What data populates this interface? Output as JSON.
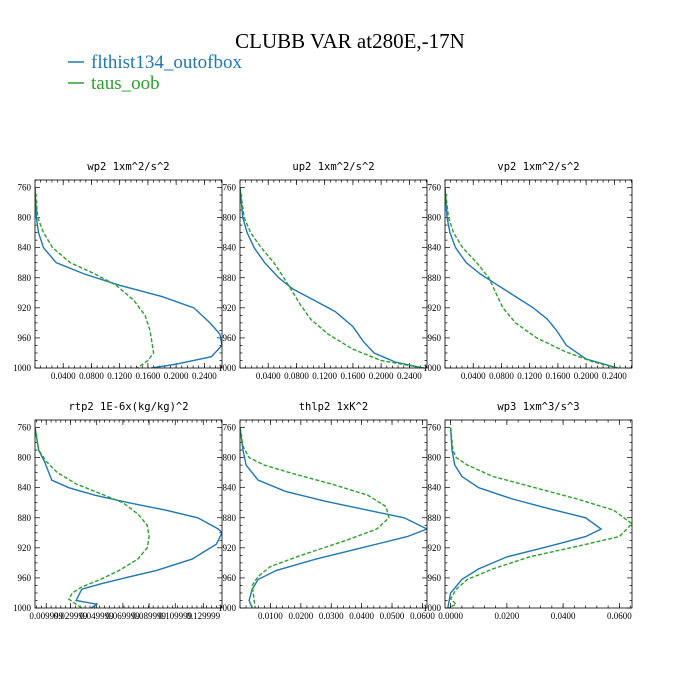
{
  "title": "CLUBB VAR at280E,-17N",
  "legend": [
    {
      "label": "flthist134_outofbox",
      "color": "#1f77b4",
      "dash": "solid"
    },
    {
      "label": "taus_oob",
      "color": "#2ca02c",
      "dash": "dashed"
    }
  ],
  "chart_data": [
    {
      "type": "line",
      "title": "wp2  1xm^2/s^2",
      "ylim": [
        1000,
        750
      ],
      "yticks": [
        760,
        800,
        840,
        880,
        920,
        960,
        1000
      ],
      "xlim": [
        0,
        0.265
      ],
      "xticks": [
        0.04,
        0.08,
        0.12,
        0.16,
        0.2,
        0.24
      ],
      "xticklabels": [
        "0.0400",
        "0.0800",
        "0.1200",
        "0.1600",
        "0.2000",
        "0.2400"
      ],
      "series": [
        {
          "x": [
            0.0,
            0.002,
            0.005,
            0.012,
            0.03,
            0.07,
            0.12,
            0.18,
            0.225,
            0.248,
            0.262,
            0.265,
            0.25,
            0.2,
            0.165
          ],
          "y": [
            760,
            800,
            820,
            840,
            860,
            875,
            890,
            905,
            920,
            940,
            955,
            970,
            985,
            995,
            1000
          ]
        },
        {
          "x": [
            0.0,
            0.004,
            0.012,
            0.025,
            0.05,
            0.085,
            0.115,
            0.14,
            0.156,
            0.163,
            0.168,
            0.16,
            0.145
          ],
          "y": [
            760,
            800,
            820,
            840,
            860,
            875,
            890,
            910,
            930,
            950,
            980,
            990,
            1000
          ]
        }
      ]
    },
    {
      "type": "line",
      "title": "up2  1xm^2/s^2",
      "ylim": [
        1000,
        750
      ],
      "yticks": [
        760,
        800,
        840,
        880,
        920,
        960,
        1000
      ],
      "xlim": [
        0,
        0.265
      ],
      "xticks": [
        0.04,
        0.08,
        0.12,
        0.16,
        0.2,
        0.24
      ],
      "xticklabels": [
        "0.0400",
        "0.0800",
        "0.1200",
        "0.1600",
        "0.2000",
        "0.2400"
      ],
      "series": [
        {
          "x": [
            0.0,
            0.004,
            0.01,
            0.02,
            0.035,
            0.055,
            0.075,
            0.105,
            0.135,
            0.16,
            0.175,
            0.19,
            0.22,
            0.26
          ],
          "y": [
            760,
            800,
            820,
            840,
            860,
            880,
            895,
            910,
            925,
            945,
            965,
            980,
            992,
            1000
          ]
        },
        {
          "x": [
            0.0,
            0.006,
            0.015,
            0.03,
            0.048,
            0.062,
            0.072,
            0.085,
            0.1,
            0.125,
            0.16,
            0.2,
            0.26
          ],
          "y": [
            760,
            800,
            820,
            840,
            860,
            880,
            895,
            915,
            935,
            955,
            975,
            990,
            1000
          ]
        }
      ]
    },
    {
      "type": "line",
      "title": "vp2  1xm^2/s^2",
      "ylim": [
        1000,
        750
      ],
      "yticks": [
        760,
        800,
        840,
        880,
        920,
        960,
        1000
      ],
      "xlim": [
        0,
        0.265
      ],
      "xticks": [
        0.04,
        0.08,
        0.12,
        0.16,
        0.2,
        0.24
      ],
      "xticklabels": [
        "0.0400",
        "0.0800",
        "0.1200",
        "0.1600",
        "0.2000",
        "0.2400"
      ],
      "series": [
        {
          "x": [
            0.0,
            0.003,
            0.007,
            0.015,
            0.03,
            0.05,
            0.075,
            0.1,
            0.125,
            0.145,
            0.158,
            0.172,
            0.2,
            0.245
          ],
          "y": [
            760,
            800,
            820,
            840,
            860,
            875,
            890,
            905,
            920,
            935,
            950,
            970,
            988,
            1000
          ]
        },
        {
          "x": [
            0.0,
            0.005,
            0.012,
            0.025,
            0.045,
            0.062,
            0.072,
            0.082,
            0.1,
            0.13,
            0.17,
            0.21,
            0.245
          ],
          "y": [
            760,
            800,
            820,
            840,
            860,
            880,
            900,
            920,
            940,
            960,
            978,
            992,
            1000
          ]
        }
      ]
    },
    {
      "type": "line",
      "title": "rtp2  1E-6x(kg/kg)^2",
      "ylim": [
        1000,
        750
      ],
      "yticks": [
        760,
        800,
        840,
        880,
        920,
        960,
        1000
      ],
      "xlim": [
        0.0,
        1.0
      ],
      "xticks": [
        0.06,
        0.19,
        0.33,
        0.47,
        0.61,
        0.75,
        0.9
      ],
      "xticklabels": [
        "0.009999",
        "0.029999",
        "0.049999",
        "0.069999",
        "0.089999",
        "0.109999",
        "0.129999"
      ],
      "series": [
        {
          "x": [
            0.0,
            0.02,
            0.05,
            0.09,
            0.18,
            0.32,
            0.5,
            0.7,
            0.87,
            0.98,
            1.0,
            0.97,
            0.84,
            0.65,
            0.48,
            0.35,
            0.25,
            0.22,
            0.33,
            0.3
          ],
          "y": [
            760,
            790,
            805,
            830,
            840,
            850,
            860,
            870,
            880,
            895,
            900,
            915,
            935,
            950,
            960,
            968,
            975,
            990,
            995,
            1000
          ]
        },
        {
          "x": [
            0.0,
            0.02,
            0.06,
            0.12,
            0.22,
            0.35,
            0.47,
            0.55,
            0.6,
            0.61,
            0.6,
            0.55,
            0.45,
            0.35,
            0.25,
            0.2,
            0.18,
            0.22,
            0.25
          ],
          "y": [
            760,
            790,
            805,
            820,
            835,
            848,
            860,
            875,
            890,
            905,
            920,
            935,
            950,
            962,
            972,
            980,
            988,
            995,
            1000
          ]
        }
      ]
    },
    {
      "type": "line",
      "title": "thlp2  1xK^2",
      "ylim": [
        1000,
        750
      ],
      "yticks": [
        760,
        800,
        840,
        880,
        920,
        960,
        1000
      ],
      "xlim": [
        0.0,
        0.0615
      ],
      "xticks": [
        0.01,
        0.02,
        0.03,
        0.04,
        0.05,
        0.06
      ],
      "xticklabels": [
        "0.0100",
        "0.0200",
        "0.0300",
        "0.0400",
        "0.0500",
        "0.0600"
      ],
      "series": [
        {
          "x": [
            0.0,
            0.001,
            0.002,
            0.006,
            0.015,
            0.028,
            0.042,
            0.054,
            0.0615,
            0.055,
            0.04,
            0.025,
            0.012,
            0.006,
            0.004,
            0.003,
            0.004
          ],
          "y": [
            760,
            790,
            810,
            830,
            845,
            858,
            870,
            880,
            895,
            905,
            920,
            935,
            950,
            962,
            975,
            990,
            1000
          ]
        },
        {
          "x": [
            0.0,
            0.001,
            0.003,
            0.008,
            0.018,
            0.03,
            0.042,
            0.048,
            0.049,
            0.045,
            0.035,
            0.02,
            0.01,
            0.006,
            0.004,
            0.005
          ],
          "y": [
            760,
            785,
            800,
            810,
            822,
            835,
            850,
            865,
            880,
            895,
            910,
            930,
            945,
            958,
            970,
            1000
          ]
        }
      ]
    },
    {
      "type": "line",
      "title": "wp3  1xm^3/s^3",
      "ylim": [
        1000,
        750
      ],
      "yticks": [
        760,
        800,
        840,
        880,
        920,
        960,
        1000
      ],
      "xlim": [
        -0.002,
        0.0645
      ],
      "xticks": [
        0.0,
        0.02,
        0.04,
        0.06
      ],
      "xticklabels": [
        "0.0000",
        "0.0200",
        "0.0400",
        "0.0600"
      ],
      "series": [
        {
          "x": [
            0.0,
            0.0005,
            0.0015,
            0.004,
            0.01,
            0.022,
            0.035,
            0.048,
            0.0535,
            0.048,
            0.035,
            0.02,
            0.01,
            0.004,
            0.0,
            -0.001
          ],
          "y": [
            760,
            790,
            810,
            825,
            840,
            855,
            868,
            880,
            895,
            905,
            918,
            932,
            948,
            962,
            980,
            1000
          ]
        },
        {
          "x": [
            0.0,
            0.0008,
            0.002,
            0.006,
            0.015,
            0.03,
            0.045,
            0.058,
            0.0645,
            0.06,
            0.045,
            0.028,
            0.015,
            0.006,
            0.002,
            0.0,
            0.002,
            -0.001
          ],
          "y": [
            760,
            790,
            800,
            810,
            825,
            840,
            855,
            870,
            888,
            905,
            918,
            932,
            948,
            962,
            975,
            988,
            995,
            1000
          ]
        }
      ]
    }
  ]
}
